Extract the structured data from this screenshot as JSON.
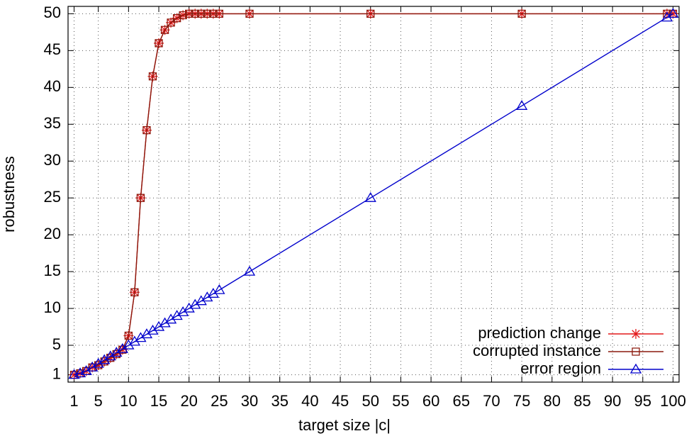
{
  "chart_data": {
    "type": "line",
    "x_label": "target size |c|",
    "y_label": "robustness",
    "x": [
      1,
      2,
      3,
      4,
      5,
      6,
      7,
      8,
      9,
      10,
      11,
      12,
      13,
      14,
      15,
      16,
      17,
      18,
      19,
      20,
      21,
      22,
      23,
      24,
      25,
      30,
      50,
      75,
      99,
      100
    ],
    "series": [
      {
        "name": "prediction change",
        "color": "#e41a1c",
        "marker": "star",
        "values": [
          1,
          1.2,
          1.5,
          2,
          2.3,
          2.8,
          3.3,
          3.8,
          4.4,
          6.3,
          12.2,
          25,
          34.2,
          41.5,
          46,
          47.8,
          48.8,
          49.4,
          49.8,
          50,
          50,
          50,
          50,
          50,
          50,
          50,
          50,
          50,
          50,
          50
        ]
      },
      {
        "name": "corrupted instance",
        "color": "#8b1a0e",
        "marker": "square",
        "values": [
          1,
          1.2,
          1.5,
          2,
          2.3,
          2.8,
          3.3,
          3.8,
          4.4,
          6.3,
          12.2,
          25,
          34.2,
          41.5,
          46,
          47.8,
          48.8,
          49.4,
          49.8,
          50,
          50,
          50,
          50,
          50,
          50,
          50,
          50,
          50,
          50,
          50
        ]
      },
      {
        "name": "error region",
        "color": "#0000cc",
        "marker": "triangle",
        "values": [
          1,
          1.2,
          1.5,
          2,
          2.5,
          3,
          3.5,
          4,
          4.5,
          5,
          5.5,
          6,
          6.5,
          7,
          7.5,
          8,
          8.5,
          9,
          9.5,
          10,
          10.5,
          11,
          11.5,
          12,
          12.5,
          15,
          25,
          37.5,
          49.5,
          50
        ]
      }
    ],
    "xlim": [
      0,
      101
    ],
    "xticks": [
      1,
      5,
      10,
      15,
      20,
      25,
      30,
      35,
      40,
      45,
      50,
      55,
      60,
      65,
      70,
      75,
      80,
      85,
      90,
      95,
      100
    ],
    "ylim": [
      0,
      51
    ],
    "yticks": [
      1,
      5,
      10,
      15,
      20,
      25,
      30,
      35,
      40,
      45,
      50
    ],
    "grid": true,
    "legend": "bottom right"
  }
}
